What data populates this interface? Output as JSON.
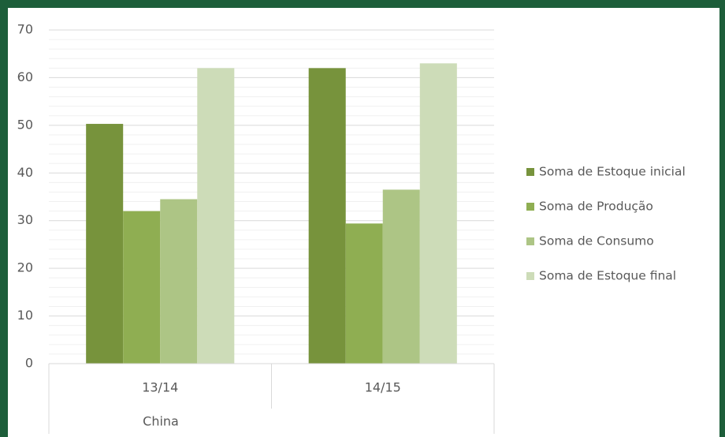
{
  "chart_data": {
    "type": "bar",
    "categories": [
      "13/14",
      "14/15"
    ],
    "group_label": "China",
    "series": [
      {
        "name": "Soma de Estoque inicial",
        "color": "#77933c",
        "values": [
          50.3,
          62
        ]
      },
      {
        "name": "Soma de Produção",
        "color": "#8fae52",
        "values": [
          32,
          29.4
        ]
      },
      {
        "name": "Soma de Consumo",
        "color": "#adc585",
        "values": [
          34.5,
          36.5
        ]
      },
      {
        "name": "Soma de Estoque final",
        "color": "#cddcb8",
        "values": [
          62,
          63
        ]
      }
    ],
    "ylim": [
      0,
      70
    ],
    "yticks": [
      0,
      10,
      20,
      30,
      40,
      50,
      60,
      70
    ],
    "minor_yticks": [
      2,
      4,
      6,
      8,
      12,
      14,
      16,
      18,
      22,
      24,
      26,
      28,
      32,
      34,
      36,
      38,
      42,
      44,
      46,
      48,
      52,
      54,
      56,
      58,
      62,
      64,
      66,
      68
    ],
    "grid": true,
    "legend": "right"
  }
}
